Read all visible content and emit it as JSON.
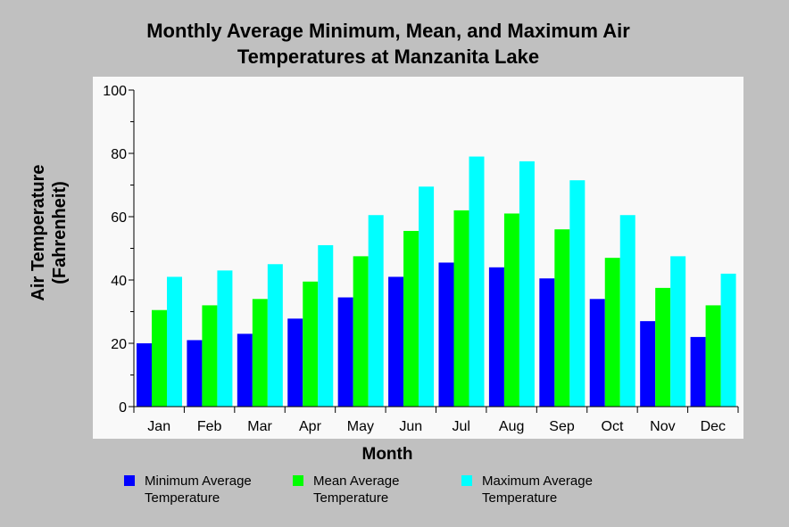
{
  "chart_data": {
    "type": "bar",
    "title_lines": [
      "Monthly Average Minimum, Mean, and Maximum Air",
      "Temperatures at Manzanita Lake"
    ],
    "xlabel": "Month",
    "ylabel_lines": [
      "Air Temperature",
      "(Fahrenheit)"
    ],
    "ylim": [
      0,
      100
    ],
    "yticks": [
      "0",
      "20",
      "40",
      "60",
      "80",
      "100"
    ],
    "categories": [
      "Jan",
      "Feb",
      "Mar",
      "Apr",
      "May",
      "Jun",
      "Jul",
      "Aug",
      "Sep",
      "Oct",
      "Nov",
      "Dec"
    ],
    "series": [
      {
        "name": "Minimum Average Temperature",
        "legend_lines": [
          "Minimum Average",
          "Temperature"
        ],
        "color": "#0000ff",
        "values": [
          20.0,
          21.0,
          23.0,
          27.8,
          34.5,
          41.0,
          45.5,
          44.0,
          40.5,
          34.0,
          27.0,
          22.0
        ]
      },
      {
        "name": "Mean Average Temperature",
        "legend_lines": [
          "Mean Average",
          "Temperature"
        ],
        "color": "#00ff00",
        "values": [
          30.5,
          32.0,
          34.0,
          39.5,
          47.5,
          55.5,
          62.0,
          61.0,
          56.0,
          47.0,
          37.5,
          32.0
        ]
      },
      {
        "name": "Maximum Average Temperature",
        "legend_lines": [
          "Maximum Average",
          "Temperature"
        ],
        "color": "#00ffff",
        "values": [
          41.0,
          43.0,
          45.0,
          51.0,
          60.5,
          69.5,
          79.0,
          77.5,
          71.5,
          60.5,
          47.5,
          42.0
        ]
      }
    ],
    "grid": false,
    "legend_position": "bottom"
  },
  "colors": {
    "background": "#c0c0c0",
    "plot_area": "#f9f9f9"
  }
}
